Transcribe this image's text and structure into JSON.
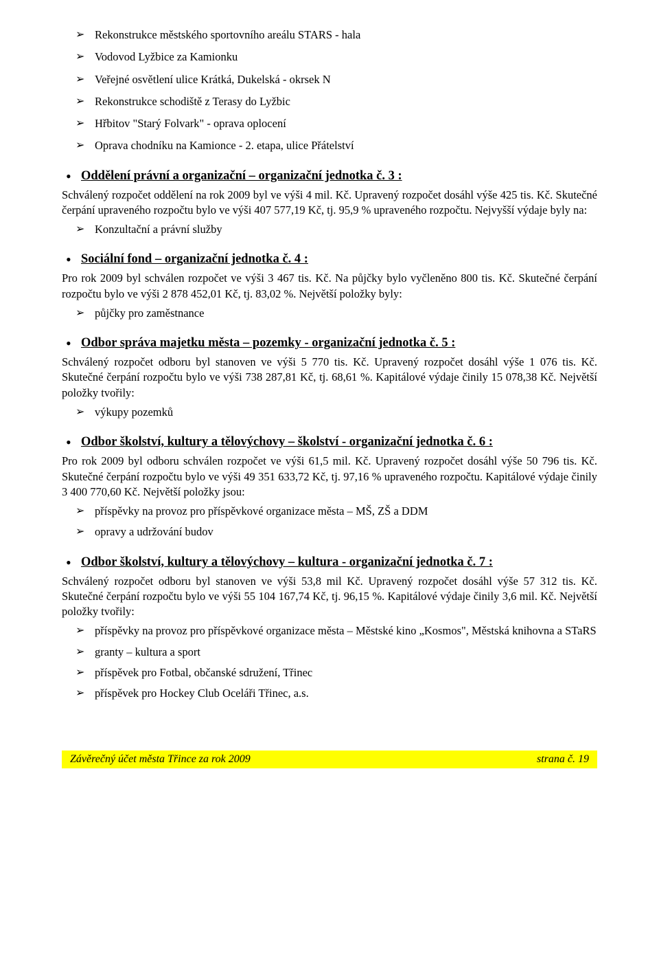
{
  "top_arrow_list": [
    "Rekonstrukce městského sportovního areálu STARS - hala",
    "Vodovod Lyžbice za Kamionku",
    "Veřejné osvětlení ulice Krátká, Dukelská - okrsek N",
    "Rekonstrukce schodiště z Terasy do Lyžbic",
    "Hřbitov \"Starý Folvark\" - oprava oplocení",
    "Oprava chodníku na Kamionce - 2. etapa, ulice Přátelství"
  ],
  "sections": [
    {
      "heading": "Oddělení právní a organizační – organizační jednotka č. 3 :",
      "para": "Schválený rozpočet oddělení na rok 2009 byl ve výši 4 mil. Kč. Upravený rozpočet dosáhl výše 425 tis. Kč. Skutečné čerpání upraveného rozpočtu bylo ve výši 407 577,19 Kč, tj. 95,9 % upraveného rozpočtu. Nejvyšší výdaje byly na:",
      "items": [
        "Konzultační a právní služby"
      ]
    },
    {
      "heading": "Sociální fond – organizační jednotka č. 4 :",
      "para": "Pro rok 2009 byl schválen rozpočet ve výši 3 467 tis. Kč. Na půjčky bylo vyčleněno 800 tis. Kč. Skutečné čerpání rozpočtu bylo ve výši 2 878 452,01 Kč, tj. 83,02 %. Největší položky byly:",
      "items": [
        "půjčky pro zaměstnance"
      ]
    },
    {
      "heading": "Odbor správa majetku města – pozemky - organizační jednotka č. 5 :",
      "para": "Schválený rozpočet odboru byl stanoven ve výši 5 770 tis. Kč. Upravený rozpočet dosáhl výše 1 076 tis. Kč. Skutečné čerpání rozpočtu bylo ve výši 738 287,81 Kč, tj. 68,61 %. Kapitálové výdaje činily 15 078,38 Kč. Největší položky tvořily:",
      "items": [
        "výkupy pozemků"
      ]
    },
    {
      "heading": "Odbor školství, kultury a tělovýchovy – školství - organizační jednotka č. 6 :",
      "para": "Pro rok 2009 byl odboru schválen rozpočet ve výši 61,5 mil. Kč. Upravený rozpočet dosáhl výše 50 796 tis. Kč. Skutečné čerpání rozpočtu bylo ve výši 49 351 633,72 Kč, tj. 97,16 % upraveného rozpočtu. Kapitálové výdaje činily 3 400 770,60 Kč. Největší položky jsou:",
      "items": [
        "příspěvky na provoz pro příspěvkové organizace města – MŠ, ZŠ a DDM",
        "opravy a udržování budov"
      ]
    },
    {
      "heading": "Odbor školství, kultury a tělovýchovy – kultura - organizační jednotka č. 7 :",
      "para": "Schválený rozpočet odboru byl stanoven ve výši 53,8 mil Kč. Upravený rozpočet dosáhl výše 57 312 tis. Kč. Skutečné čerpání rozpočtu bylo ve výši 55 104 167,74 Kč, tj. 96,15 %. Kapitálové výdaje činily 3,6 mil. Kč. Největší položky tvořily:",
      "items": [
        "příspěvky na provoz pro příspěvkové organizace města – Městské kino „Kosmos\", Městská knihovna a STaRS",
        "granty – kultura a sport",
        "příspěvek pro Fotbal, občanské sdružení, Třinec",
        "příspěvek pro Hockey Club Oceláři Třinec, a.s."
      ]
    }
  ],
  "footer": {
    "left": "Závěrečný účet města Třince za rok 2009",
    "right": "strana č. 19"
  }
}
